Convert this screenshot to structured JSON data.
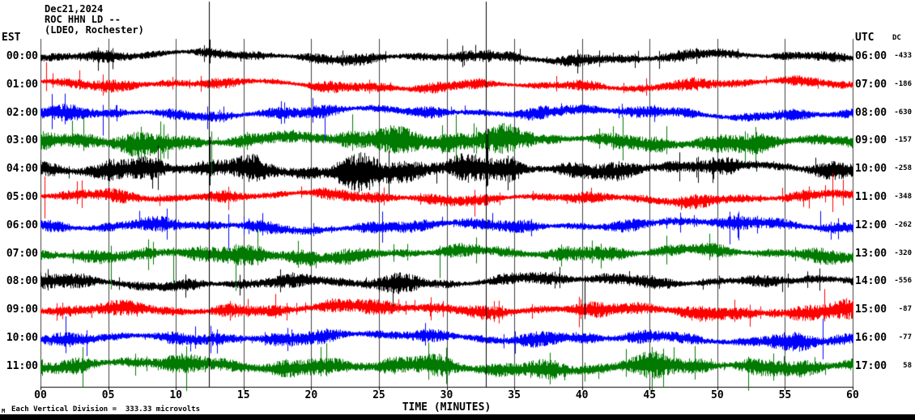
{
  "title": {
    "date": "Dec21,2024",
    "station": "ROC HHN LD --",
    "location": "(LDEO, Rochester)"
  },
  "axes": {
    "left_timezone_label": "EST",
    "right_timezone_label": "UTC",
    "dc_column_label": "DC",
    "x_axis_title": "TIME (MINUTES)",
    "x_ticks": [
      "00",
      "05",
      "10",
      "15",
      "20",
      "25",
      "30",
      "35",
      "40",
      "45",
      "50",
      "55",
      "60"
    ],
    "footer_note": "Each Vertical Division =  333.33 microvolts",
    "footer_mark": "M"
  },
  "chart_data": {
    "type": "line",
    "subtype": "helicorder-seismogram",
    "title": "ROC HHN LD -- (LDEO, Rochester) Dec21,2024",
    "xlabel": "TIME (MINUTES)",
    "x_range_minutes": [
      0,
      60
    ],
    "x_tick_step_minutes": 5,
    "row_duration_minutes": 60,
    "vertical_division_microvolts": 333.33,
    "trace_color_cycle": [
      "#000000",
      "#ff0000",
      "#0000ff",
      "#007a00"
    ],
    "grid_color": "#000000",
    "rows": [
      {
        "est": "00:00",
        "utc": "06:00",
        "dc": "-433",
        "color": "#000000",
        "amp": 6.5
      },
      {
        "est": "01:00",
        "utc": "07:00",
        "dc": "-186",
        "color": "#ff0000",
        "amp": 6.5
      },
      {
        "est": "02:00",
        "utc": "08:00",
        "dc": "-630",
        "color": "#0000ff",
        "amp": 7
      },
      {
        "est": "03:00",
        "utc": "09:00",
        "dc": "-157",
        "color": "#007a00",
        "amp": 9
      },
      {
        "est": "04:00",
        "utc": "10:00",
        "dc": "-258",
        "color": "#000000",
        "amp": 10
      },
      {
        "est": "05:00",
        "utc": "11:00",
        "dc": "-348",
        "color": "#ff0000",
        "amp": 7
      },
      {
        "est": "06:00",
        "utc": "12:00",
        "dc": "-262",
        "color": "#0000ff",
        "amp": 7.5
      },
      {
        "est": "07:00",
        "utc": "13:00",
        "dc": "-320",
        "color": "#007a00",
        "amp": 8.5
      },
      {
        "est": "08:00",
        "utc": "14:00",
        "dc": "-556",
        "color": "#000000",
        "amp": 7.5
      },
      {
        "est": "09:00",
        "utc": "15:00",
        "dc": "-87",
        "color": "#ff0000",
        "amp": 8.5
      },
      {
        "est": "10:00",
        "utc": "16:00",
        "dc": "-77",
        "color": "#0000ff",
        "amp": 8
      },
      {
        "est": "11:00",
        "utc": "17:00",
        "dc": "58",
        "color": "#007a00",
        "amp": 10
      }
    ],
    "bursts": [
      {
        "row": 0,
        "start": 33.0,
        "end": 34.8,
        "gain": 2.3
      },
      {
        "row": 2,
        "start": 0,
        "end": 6,
        "gain": 1.3
      },
      {
        "row": 3,
        "start": 0,
        "end": 9,
        "gain": 1.5
      },
      {
        "row": 3,
        "start": 20,
        "end": 36,
        "gain": 1.7
      },
      {
        "row": 3,
        "start": 43,
        "end": 53,
        "gain": 1.3
      },
      {
        "row": 4,
        "start": 5,
        "end": 16,
        "gain": 1.5
      },
      {
        "row": 4,
        "start": 22,
        "end": 35,
        "gain": 1.9
      },
      {
        "row": 7,
        "start": 8,
        "end": 20,
        "gain": 1.4
      },
      {
        "row": 8,
        "start": 0,
        "end": 6,
        "gain": 1.3
      },
      {
        "row": 8,
        "start": 24,
        "end": 28,
        "gain": 1.6
      },
      {
        "row": 9,
        "start": 54,
        "end": 60,
        "gain": 1.5
      },
      {
        "row": 10,
        "start": 54,
        "end": 59,
        "gain": 1.4
      },
      {
        "row": 11,
        "start": 20,
        "end": 30,
        "gain": 1.3
      },
      {
        "row": 11,
        "start": 43,
        "end": 49,
        "gain": 1.6
      }
    ],
    "spikes": [
      {
        "row": 1,
        "m": 0.4,
        "up": 28,
        "down": 8
      },
      {
        "row": 1,
        "m": 2.9,
        "up": 18,
        "down": 6
      },
      {
        "row": 2,
        "m": 4.6,
        "up": 10,
        "down": 28
      },
      {
        "row": 2,
        "m": 12.3,
        "up": 8,
        "down": 20
      },
      {
        "row": 2,
        "m": 21.0,
        "up": 10,
        "down": 34
      },
      {
        "row": 3,
        "m": 3.2,
        "up": 30,
        "down": 12
      },
      {
        "row": 3,
        "m": 12.6,
        "up": 12,
        "down": 40
      },
      {
        "row": 4,
        "m": 12.5,
        "up": 40,
        "down": 20
      },
      {
        "row": 4,
        "m": 33.0,
        "up": 50,
        "down": 20
      },
      {
        "row": 5,
        "m": 0.3,
        "up": 26,
        "down": 26
      },
      {
        "row": 5,
        "m": 2.7,
        "up": 20,
        "down": 8
      },
      {
        "row": 5,
        "m": 58.5,
        "up": 30,
        "down": 18
      },
      {
        "row": 5,
        "m": 59.3,
        "up": 22,
        "down": 10
      },
      {
        "row": 6,
        "m": 13.9,
        "up": 14,
        "down": 30
      },
      {
        "row": 6,
        "m": 57.6,
        "up": 18,
        "down": 8
      },
      {
        "row": 7,
        "m": 5.2,
        "up": 10,
        "down": 44
      },
      {
        "row": 7,
        "m": 9.8,
        "up": 8,
        "down": 38
      },
      {
        "row": 7,
        "m": 14.4,
        "up": 12,
        "down": 46
      },
      {
        "row": 7,
        "m": 29.5,
        "up": 10,
        "down": 30
      },
      {
        "row": 8,
        "m": 26.0,
        "up": 6,
        "down": 30
      },
      {
        "row": 8,
        "m": 40.2,
        "up": 8,
        "down": 46
      },
      {
        "row": 9,
        "m": 57.9,
        "up": 26,
        "down": 14
      },
      {
        "row": 10,
        "m": 3.4,
        "up": 10,
        "down": 22
      },
      {
        "row": 10,
        "m": 57.8,
        "up": 24,
        "down": 26
      },
      {
        "row": 11,
        "m": 46.0,
        "up": 22,
        "down": 26
      },
      {
        "row": 11,
        "m": 52.3,
        "up": 12,
        "down": 30
      }
    ],
    "full_height_lines_minutes": [
      12.45,
      32.9
    ]
  }
}
